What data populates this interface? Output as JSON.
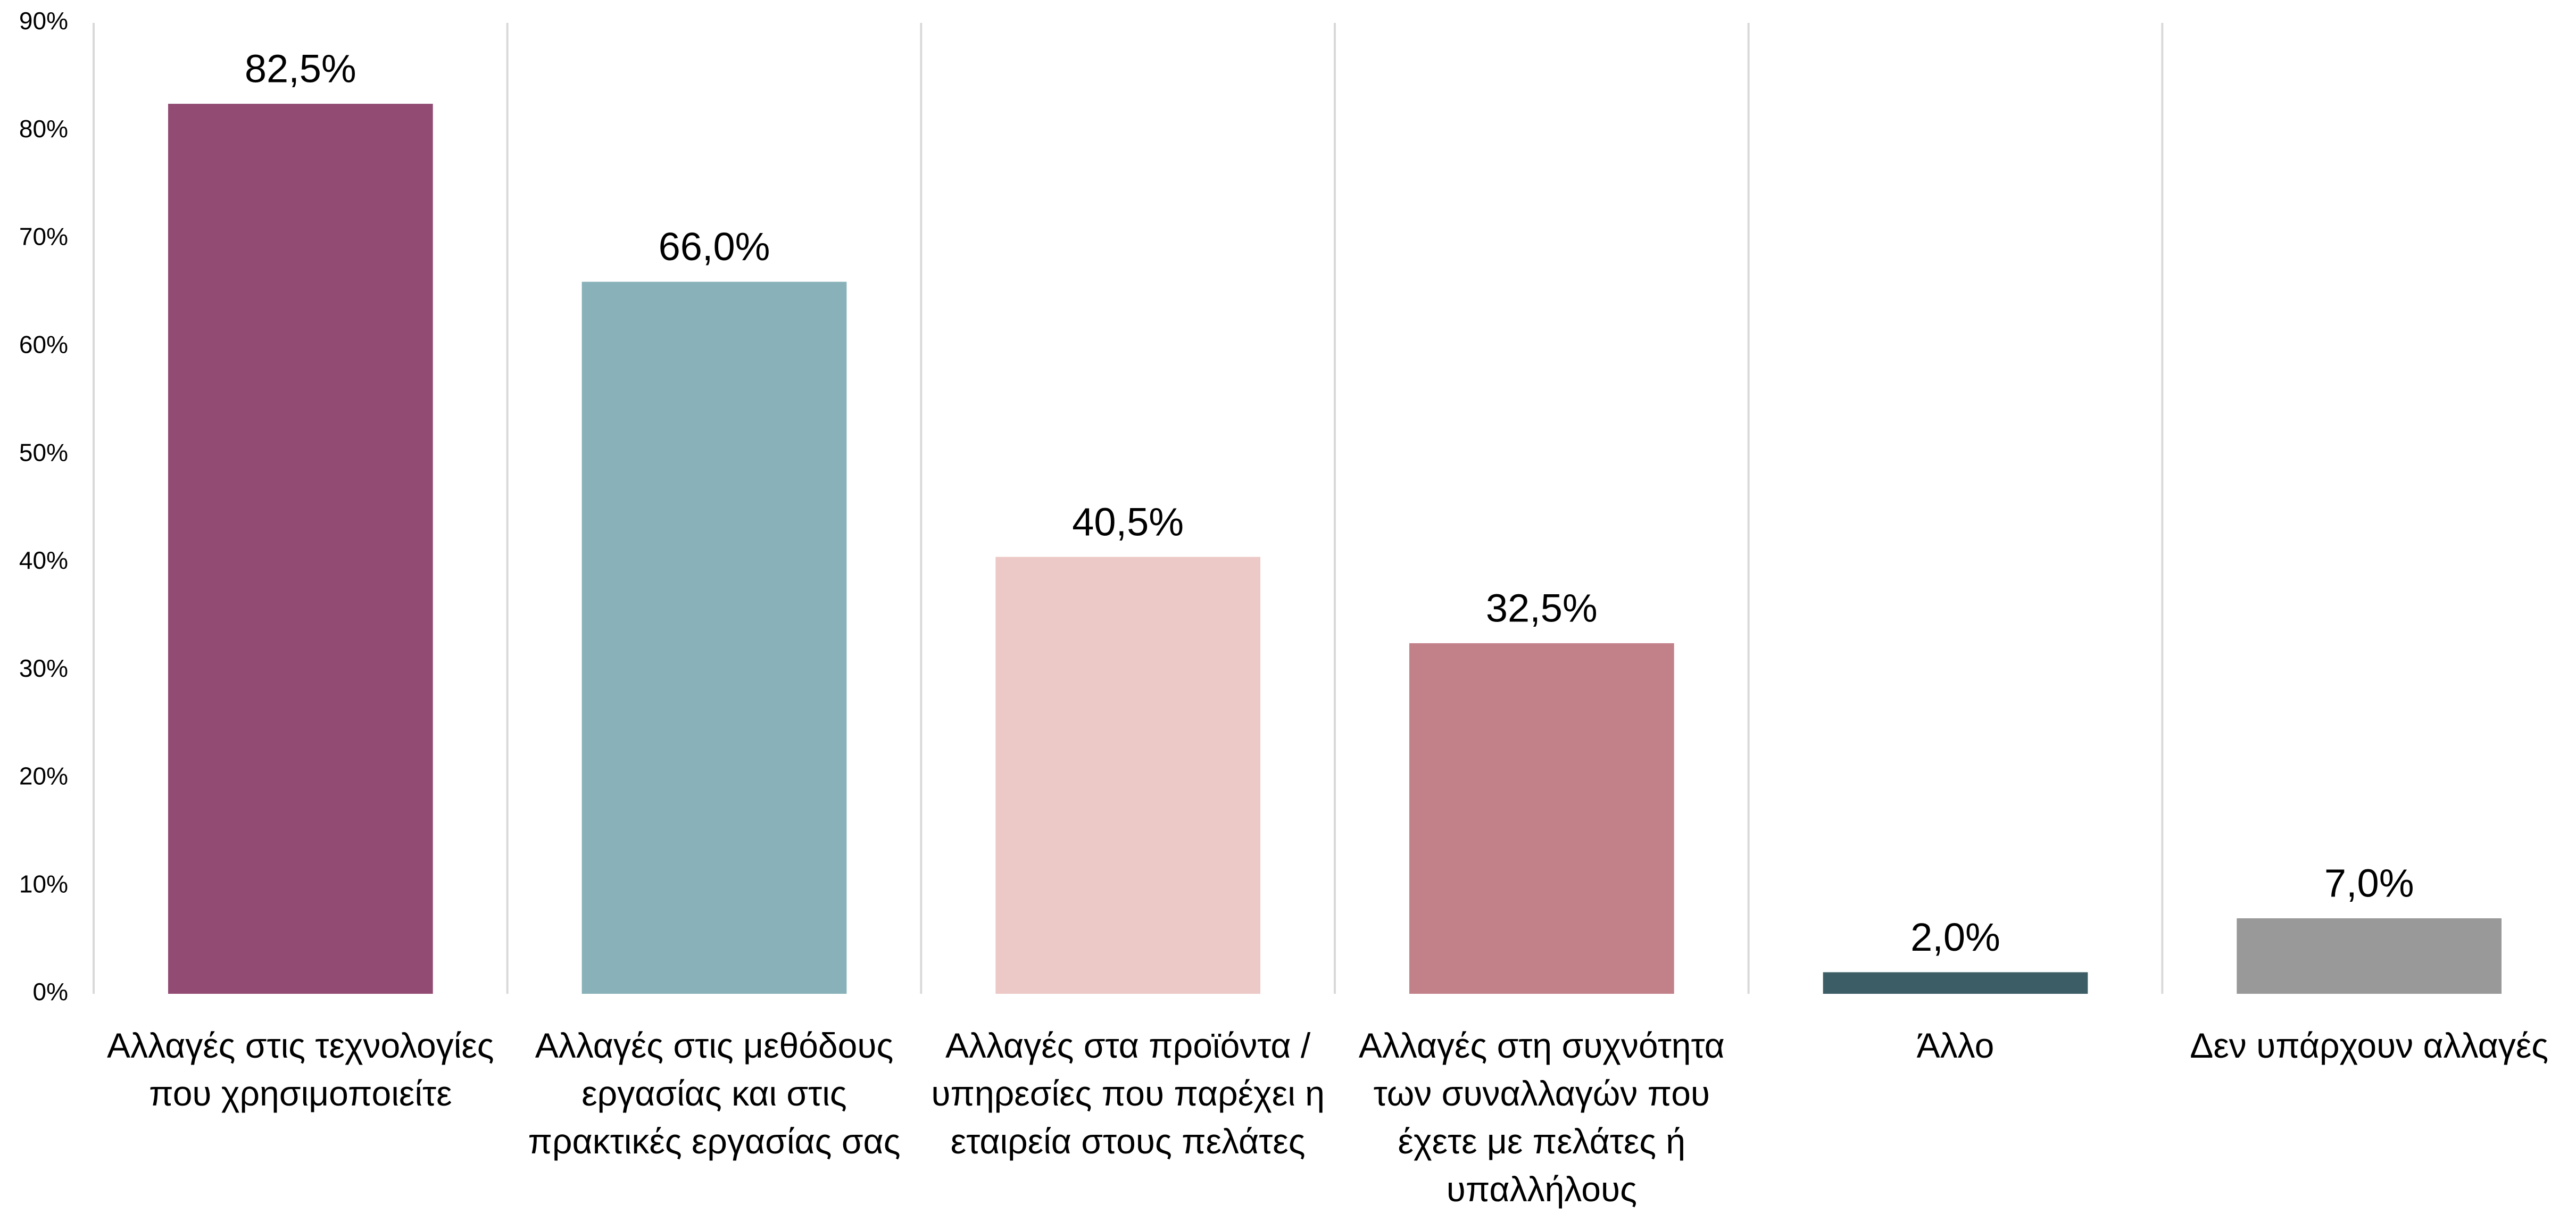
{
  "chart_data": {
    "type": "bar",
    "categories": [
      "Αλλαγές στις τεχνολογίες\nπου χρησιμοποιείτε",
      "Αλλαγές στις μεθόδους\nεργασίας και στις\nπρακτικές εργασίας σας",
      "Αλλαγές στα προϊόντα /\nυπηρεσίες που παρέχει η\nεταιρεία στους πελάτες",
      "Αλλαγές στη συχνότητα\nτων συναλλαγών που\nέχετε με πελάτες ή\nυπαλλήλους",
      "Άλλο",
      "Δεν υπάρχουν αλλαγές"
    ],
    "values": [
      82.5,
      66.0,
      40.5,
      32.5,
      2.0,
      7.0
    ],
    "value_labels": [
      "82,5%",
      "66,0%",
      "40,5%",
      "32,5%",
      "2,0%",
      "7,0%"
    ],
    "colors": [
      "#924c73",
      "#88b1b9",
      "#ecc9c6",
      "#c28189",
      "#3c5d66",
      "#999999"
    ],
    "ylim": [
      0,
      90
    ],
    "yticks": [
      {
        "value": 0,
        "label": "0%"
      },
      {
        "value": 10,
        "label": "10%"
      },
      {
        "value": 20,
        "label": "20%"
      },
      {
        "value": 30,
        "label": "30%"
      },
      {
        "value": 40,
        "label": "40%"
      },
      {
        "value": 50,
        "label": "50%"
      },
      {
        "value": 60,
        "label": "60%"
      },
      {
        "value": 70,
        "label": "70%"
      },
      {
        "value": 80,
        "label": "80%"
      },
      {
        "value": 90,
        "label": "90%"
      }
    ]
  }
}
